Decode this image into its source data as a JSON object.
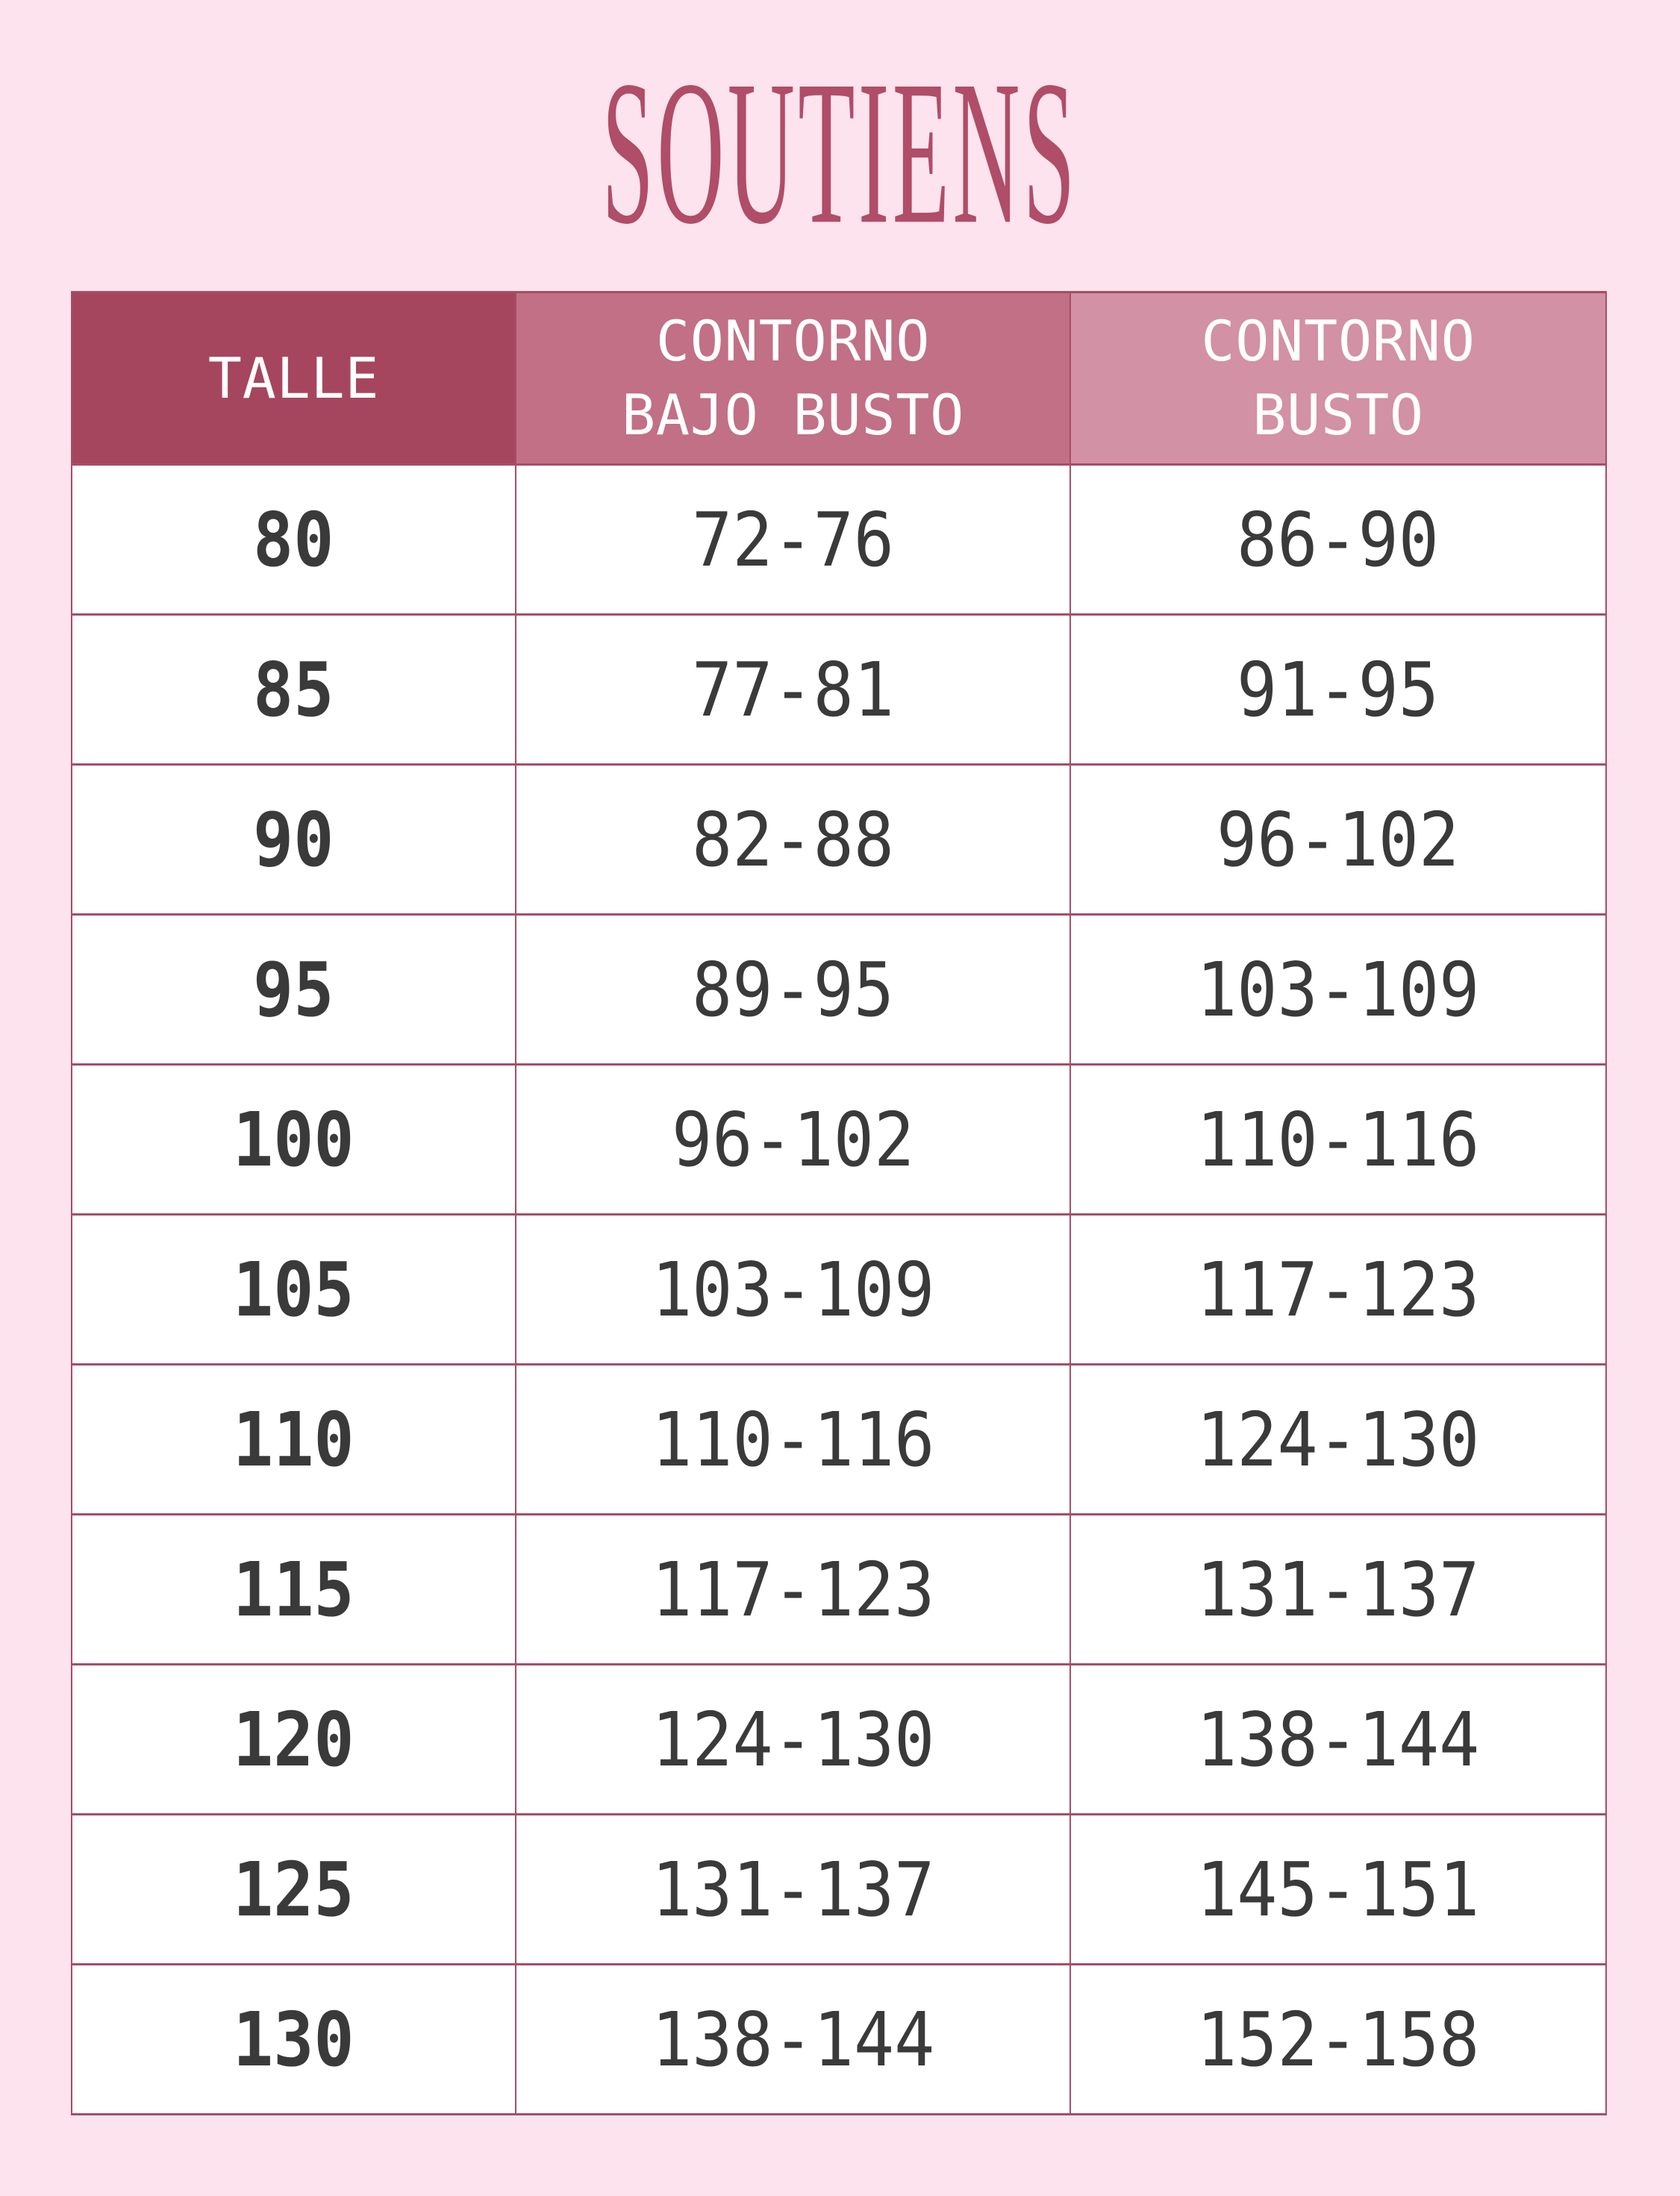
{
  "title": "SOUTIENS",
  "colors": {
    "background": "#fce3ed",
    "title": "#b04d68",
    "border": "#a64d68",
    "header_talle_bg": "#a6465e",
    "header_bajo_bg": "#c17086",
    "header_busto_bg": "#d291a5",
    "header_text": "#ffffff",
    "cell_text": "#3a3a3a",
    "cell_bg": "#ffffff"
  },
  "table": {
    "headers": [
      {
        "lines": [
          "TALLE"
        ]
      },
      {
        "lines": [
          "CONTORNO",
          "BAJO BUSTO"
        ]
      },
      {
        "lines": [
          "CONTORNO",
          "BUSTO"
        ]
      }
    ],
    "rows": [
      [
        "80",
        "72-76",
        "86-90"
      ],
      [
        "85",
        "77-81",
        "91-95"
      ],
      [
        "90",
        "82-88",
        "96-102"
      ],
      [
        "95",
        "89-95",
        "103-109"
      ],
      [
        "100",
        "96-102",
        "110-116"
      ],
      [
        "105",
        "103-109",
        "117-123"
      ],
      [
        "110",
        "110-116",
        "124-130"
      ],
      [
        "115",
        "117-123",
        "131-137"
      ],
      [
        "120",
        "124-130",
        "138-144"
      ],
      [
        "125",
        "131-137",
        "145-151"
      ],
      [
        "130",
        "138-144",
        "152-158"
      ]
    ]
  }
}
